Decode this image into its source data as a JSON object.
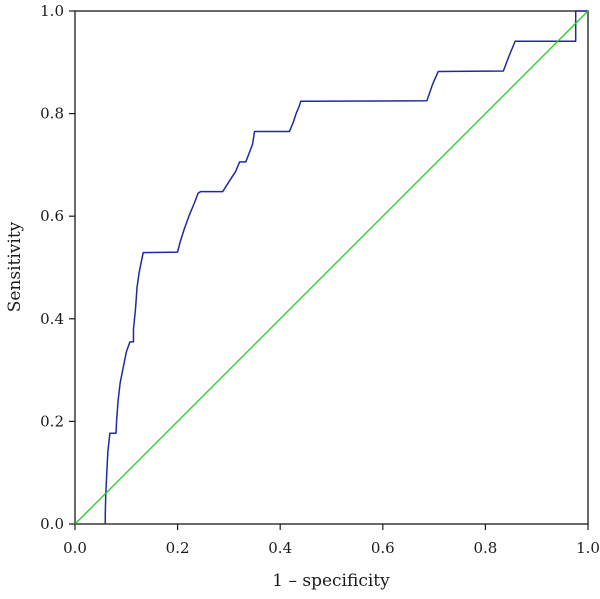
{
  "chart_data": {
    "type": "line",
    "title": "",
    "xlabel": "1 – specificity",
    "ylabel": "Sensitivity",
    "xlim": [
      0,
      1
    ],
    "ylim": [
      0,
      1
    ],
    "xticks": [
      "0.0",
      "0.2",
      "0.4",
      "0.6",
      "0.8",
      "1.0"
    ],
    "yticks": [
      "0.0",
      "0.2",
      "0.4",
      "0.6",
      "0.8",
      "1.0"
    ],
    "grid": false,
    "legend": "none",
    "colors": {
      "roc": "#1f2aa0",
      "reference": "#22cc22",
      "axis": "#1a1a1a"
    },
    "series": [
      {
        "x": [
          0.059,
          0.059,
          0.06,
          0.062,
          0.064,
          0.068,
          0.074,
          0.08,
          0.081,
          0.084,
          0.088,
          0.094,
          0.1,
          0.107,
          0.114,
          0.114,
          0.118,
          0.121,
          0.125,
          0.129,
          0.133,
          0.2,
          0.205,
          0.213,
          0.222,
          0.232,
          0.24,
          0.245,
          0.288,
          0.3,
          0.313,
          0.321,
          0.333,
          0.346,
          0.35,
          0.418,
          0.425,
          0.431,
          0.437,
          0.44,
          0.686,
          0.697,
          0.708,
          0.835,
          0.846,
          0.858,
          0.976,
          0.976,
          1.0
        ],
        "y": [
          0.0,
          0.02,
          0.058,
          0.1,
          0.14,
          0.177,
          0.177,
          0.177,
          0.2,
          0.24,
          0.275,
          0.305,
          0.335,
          0.355,
          0.355,
          0.38,
          0.42,
          0.462,
          0.49,
          0.51,
          0.529,
          0.53,
          0.55,
          0.575,
          0.6,
          0.624,
          0.645,
          0.648,
          0.648,
          0.667,
          0.687,
          0.706,
          0.706,
          0.74,
          0.765,
          0.765,
          0.782,
          0.8,
          0.814,
          0.824,
          0.825,
          0.857,
          0.882,
          0.883,
          0.912,
          0.941,
          0.941,
          1.0,
          1.0
        ]
      },
      {
        "x": [
          0,
          1
        ],
        "y": [
          0,
          1
        ]
      }
    ]
  }
}
